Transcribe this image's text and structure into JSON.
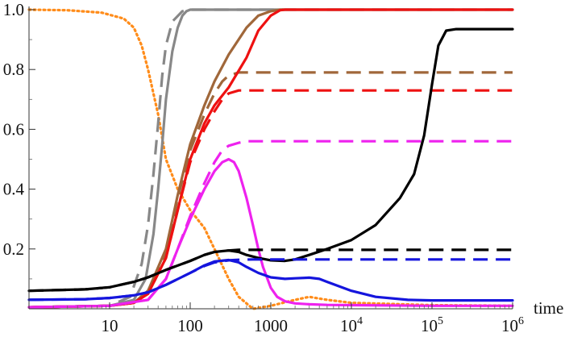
{
  "chart_data": {
    "type": "line",
    "title": "",
    "xlabel": "time",
    "ylabel": "",
    "x_scale": "log",
    "xlim": [
      1,
      1000000
    ],
    "ylim": [
      0,
      1.0
    ],
    "grid": false,
    "legend": "none",
    "x_ticks": [
      {
        "value": 10,
        "base": "10",
        "exp": ""
      },
      {
        "value": 100,
        "base": "100",
        "exp": ""
      },
      {
        "value": 1000,
        "base": "1000",
        "exp": ""
      },
      {
        "value": 10000,
        "base": "10",
        "exp": "4"
      },
      {
        "value": 100000,
        "base": "10",
        "exp": "5"
      },
      {
        "value": 1000000,
        "base": "10",
        "exp": "6"
      }
    ],
    "y_ticks": [
      {
        "value": 0.2,
        "label": "0.2"
      },
      {
        "value": 0.4,
        "label": "0.4"
      },
      {
        "value": 0.6,
        "label": "0.6"
      },
      {
        "value": 0.8,
        "label": "0.8"
      },
      {
        "value": 1.0,
        "label": "1.0"
      }
    ],
    "series": [
      {
        "color": "#ff8c1a",
        "style": "dotted",
        "x": [
          1,
          3,
          8,
          15,
          20,
          25,
          30,
          40,
          50,
          70,
          100,
          150,
          200,
          300,
          400,
          600,
          1000,
          2000,
          3000,
          5000,
          10000,
          100000,
          1000000
        ],
        "y": [
          1.0,
          0.998,
          0.99,
          0.97,
          0.94,
          0.88,
          0.8,
          0.65,
          0.5,
          0.4,
          0.33,
          0.27,
          0.2,
          0.1,
          0.04,
          0.0,
          0.01,
          0.03,
          0.04,
          0.03,
          0.02,
          0.012,
          0.01
        ]
      },
      {
        "color": "#888888",
        "style": "dashed",
        "x": [
          1,
          10,
          18,
          25,
          30,
          35,
          40,
          45,
          50,
          60,
          80,
          100,
          1000000
        ],
        "y": [
          0.005,
          0.01,
          0.04,
          0.15,
          0.28,
          0.45,
          0.62,
          0.78,
          0.88,
          0.96,
          0.995,
          1.0,
          1.0
        ]
      },
      {
        "color": "#888888",
        "style": "solid",
        "x": [
          1,
          10,
          20,
          28,
          35,
          40,
          45,
          50,
          60,
          70,
          80,
          90,
          100,
          1000000
        ],
        "y": [
          0.005,
          0.01,
          0.03,
          0.1,
          0.25,
          0.4,
          0.55,
          0.7,
          0.86,
          0.94,
          0.98,
          0.995,
          1.0,
          1.0
        ]
      },
      {
        "color": "#a0673a",
        "style": "solid",
        "x": [
          1,
          10,
          20,
          30,
          50,
          70,
          100,
          150,
          200,
          300,
          500,
          700,
          1000,
          1300,
          1000000
        ],
        "y": [
          0.005,
          0.01,
          0.02,
          0.06,
          0.2,
          0.38,
          0.55,
          0.68,
          0.76,
          0.85,
          0.94,
          0.98,
          0.995,
          1.0,
          1.0
        ]
      },
      {
        "color": "#a0673a",
        "style": "dashed",
        "x": [
          1,
          10,
          20,
          30,
          50,
          70,
          100,
          150,
          200,
          250,
          300,
          400,
          1000000
        ],
        "y": [
          0.005,
          0.01,
          0.02,
          0.06,
          0.19,
          0.37,
          0.53,
          0.65,
          0.72,
          0.76,
          0.78,
          0.79,
          0.79
        ]
      },
      {
        "color": "#ee1111",
        "style": "solid",
        "x": [
          1,
          10,
          20,
          30,
          50,
          70,
          100,
          150,
          200,
          300,
          500,
          700,
          1000,
          1300,
          1500,
          1000000
        ],
        "y": [
          0.005,
          0.01,
          0.02,
          0.05,
          0.17,
          0.33,
          0.5,
          0.62,
          0.68,
          0.74,
          0.84,
          0.93,
          0.98,
          0.998,
          1.0,
          1.0
        ]
      },
      {
        "color": "#ee1111",
        "style": "dashed",
        "x": [
          1,
          10,
          20,
          30,
          50,
          70,
          100,
          150,
          200,
          250,
          300,
          400,
          1000000
        ],
        "y": [
          0.005,
          0.01,
          0.02,
          0.05,
          0.17,
          0.33,
          0.49,
          0.6,
          0.66,
          0.7,
          0.72,
          0.73,
          0.73
        ]
      },
      {
        "color": "#ee22ee",
        "style": "solid",
        "x": [
          1,
          10,
          30,
          50,
          70,
          100,
          150,
          200,
          250,
          300,
          350,
          400,
          500,
          600,
          700,
          800,
          1000,
          1200,
          1500,
          2000,
          3000,
          5000,
          10000,
          100000,
          1000000
        ],
        "y": [
          0.005,
          0.01,
          0.03,
          0.1,
          0.2,
          0.3,
          0.4,
          0.46,
          0.49,
          0.5,
          0.49,
          0.46,
          0.37,
          0.28,
          0.2,
          0.14,
          0.07,
          0.04,
          0.025,
          0.018,
          0.015,
          0.013,
          0.012,
          0.01,
          0.01
        ]
      },
      {
        "color": "#ee22ee",
        "style": "dashed",
        "x": [
          1,
          10,
          30,
          50,
          70,
          100,
          150,
          200,
          250,
          300,
          400,
          500,
          1000000
        ],
        "y": [
          0.005,
          0.01,
          0.03,
          0.1,
          0.2,
          0.31,
          0.42,
          0.49,
          0.53,
          0.545,
          0.555,
          0.56,
          0.56
        ]
      },
      {
        "color": "#000000",
        "style": "solid",
        "x": [
          1,
          5,
          10,
          20,
          30,
          50,
          100,
          150,
          200,
          300,
          400,
          500,
          700,
          1000,
          1500,
          2000,
          3000,
          5000,
          10000,
          20000,
          40000,
          60000,
          80000,
          100000,
          120000,
          150000,
          200000,
          1000000
        ],
        "y": [
          0.06,
          0.065,
          0.072,
          0.09,
          0.105,
          0.13,
          0.16,
          0.18,
          0.19,
          0.195,
          0.19,
          0.18,
          0.17,
          0.162,
          0.16,
          0.165,
          0.18,
          0.2,
          0.23,
          0.28,
          0.37,
          0.45,
          0.58,
          0.75,
          0.88,
          0.93,
          0.935,
          0.935
        ]
      },
      {
        "color": "#000000",
        "style": "dashed",
        "x": [
          1,
          5,
          10,
          20,
          30,
          50,
          100,
          150,
          200,
          300,
          400,
          600,
          1000000
        ],
        "y": [
          0.06,
          0.065,
          0.072,
          0.09,
          0.105,
          0.13,
          0.16,
          0.18,
          0.19,
          0.195,
          0.197,
          0.197,
          0.197
        ]
      },
      {
        "color": "#1515dd",
        "style": "solid",
        "x": [
          1,
          5,
          10,
          20,
          30,
          50,
          100,
          150,
          200,
          300,
          400,
          500,
          700,
          1000,
          1500,
          2000,
          3000,
          4000,
          5000,
          10000,
          20000,
          50000,
          100000,
          1000000
        ],
        "y": [
          0.03,
          0.032,
          0.036,
          0.045,
          0.055,
          0.08,
          0.12,
          0.145,
          0.158,
          0.163,
          0.155,
          0.14,
          0.12,
          0.105,
          0.1,
          0.102,
          0.104,
          0.1,
          0.09,
          0.06,
          0.04,
          0.03,
          0.028,
          0.028
        ]
      },
      {
        "color": "#1515dd",
        "style": "dashed",
        "x": [
          1,
          5,
          10,
          20,
          30,
          50,
          100,
          150,
          200,
          300,
          400,
          600,
          1000000
        ],
        "y": [
          0.03,
          0.032,
          0.036,
          0.045,
          0.055,
          0.08,
          0.12,
          0.143,
          0.155,
          0.162,
          0.164,
          0.165,
          0.165
        ]
      }
    ]
  }
}
